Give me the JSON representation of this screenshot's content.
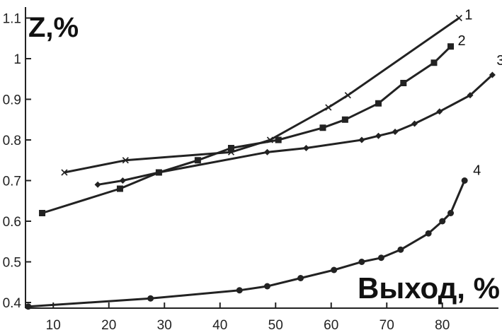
{
  "chart_data": {
    "type": "line",
    "ylabel": "Z,%",
    "xlabel": "Выход, %",
    "xlim": [
      5,
      90
    ],
    "ylim": [
      0.38,
      1.12
    ],
    "x_ticks": [
      10,
      20,
      30,
      40,
      50,
      60,
      70,
      80
    ],
    "y_ticks": [
      0.4,
      0.5,
      0.6,
      0.7,
      0.8,
      0.9,
      1,
      1.1
    ],
    "y_tick_labels": [
      "0.4",
      "0.5",
      "0.6",
      "0.7",
      "0.8",
      "0.9",
      "1",
      "1.1"
    ],
    "x_tick_labels": [
      "10",
      "20",
      "30",
      "40",
      "50",
      "60",
      "70",
      "80"
    ],
    "grid": false,
    "series": [
      {
        "name": "1",
        "marker": "x",
        "x": [
          12,
          23,
          42,
          49,
          59.5,
          63,
          83
        ],
        "y": [
          0.72,
          0.75,
          0.77,
          0.8,
          0.88,
          0.91,
          1.1
        ]
      },
      {
        "name": "2",
        "marker": "square",
        "x": [
          8,
          22,
          29,
          36,
          42,
          50.5,
          58.5,
          62.5,
          68.5,
          73,
          78.5,
          81.5
        ],
        "y": [
          0.62,
          0.68,
          0.72,
          0.75,
          0.78,
          0.8,
          0.83,
          0.85,
          0.89,
          0.94,
          0.99,
          1.03
        ]
      },
      {
        "name": "3",
        "marker": "diamond",
        "x": [
          18,
          22.5,
          29,
          48.5,
          55.5,
          65.5,
          68.5,
          71.5,
          75,
          79.5,
          85,
          89
        ],
        "y": [
          0.69,
          0.7,
          0.72,
          0.77,
          0.78,
          0.8,
          0.81,
          0.82,
          0.84,
          0.87,
          0.91,
          0.96
        ]
      },
      {
        "name": "4",
        "marker": "circle",
        "x": [
          5.5,
          27.5,
          43.5,
          48.5,
          54.5,
          60.5,
          65.5,
          69,
          72.5,
          77.5,
          80,
          81.5,
          84
        ],
        "y": [
          0.39,
          0.41,
          0.43,
          0.44,
          0.46,
          0.48,
          0.5,
          0.51,
          0.53,
          0.57,
          0.6,
          0.62,
          0.7
        ]
      }
    ]
  }
}
